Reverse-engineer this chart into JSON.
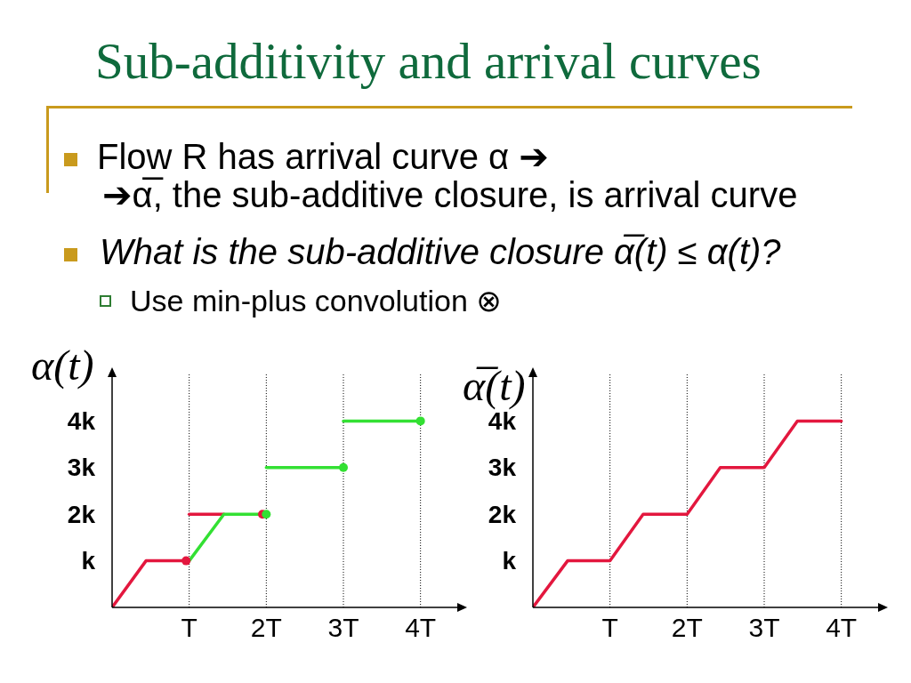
{
  "chart_data": [
    {
      "type": "line",
      "title": "Sub-additivity and arrival curves",
      "annotations": [
        "Flow R has arrival curve α ➔",
        "➔α̅, the sub-additive closure, is arrival curve",
        "What is the sub-additive closure α̅(t) ≤ α(t)?",
        "Use min-plus convolution ⊗"
      ],
      "ylabel": "α(t)",
      "xlim": [
        0,
        4.5
      ],
      "ylim": [
        0,
        5
      ],
      "xticks": [
        {
          "value": 1,
          "label": "T"
        },
        {
          "value": 2,
          "label": "2T"
        },
        {
          "value": 3,
          "label": "3T"
        },
        {
          "value": 4,
          "label": "4T"
        }
      ],
      "yticks": [
        {
          "value": 1,
          "label": "k"
        },
        {
          "value": 2,
          "label": "2k"
        },
        {
          "value": 3,
          "label": "3k"
        },
        {
          "value": 4,
          "label": "4k"
        }
      ],
      "grid": "x",
      "series": [
        {
          "color": "#e3173e",
          "x": [
            0,
            0.44,
            1
          ],
          "values": [
            0,
            1,
            1
          ]
        },
        {
          "color": "#e3173e",
          "x": [
            1,
            1.45
          ],
          "values": [
            2,
            2
          ]
        },
        {
          "color": "#33e033",
          "x": [
            1,
            1.45,
            2
          ],
          "values": [
            1,
            2,
            2
          ]
        },
        {
          "color": "#33e033",
          "x": [
            2,
            3
          ],
          "values": [
            3,
            3
          ]
        },
        {
          "color": "#33e033",
          "x": [
            3,
            4
          ],
          "values": [
            4,
            4
          ]
        },
        {
          "type": "scatter",
          "marker": "circle",
          "color": "#e3173e",
          "x": [
            0.96,
            1.95
          ],
          "values": [
            1,
            2
          ]
        },
        {
          "type": "scatter",
          "marker": "circle",
          "color": "#33e033",
          "x": [
            2,
            3,
            4
          ],
          "values": [
            2,
            3,
            4
          ]
        }
      ]
    },
    {
      "type": "line",
      "ylabel": "α̅(t)",
      "xlim": [
        0,
        4.5
      ],
      "ylim": [
        0,
        5
      ],
      "xticks": [
        {
          "value": 1,
          "label": "T"
        },
        {
          "value": 2,
          "label": "2T"
        },
        {
          "value": 3,
          "label": "3T"
        },
        {
          "value": 4,
          "label": "4T"
        }
      ],
      "yticks": [
        {
          "value": 1,
          "label": "k"
        },
        {
          "value": 2,
          "label": "2k"
        },
        {
          "value": 3,
          "label": "3k"
        },
        {
          "value": 4,
          "label": "4k"
        }
      ],
      "grid": "x",
      "series": [
        {
          "color": "#e3173e",
          "x": [
            0,
            0.45,
            1,
            1.43,
            2,
            2.43,
            3,
            3.43,
            4
          ],
          "values": [
            0,
            1,
            1,
            2,
            2,
            3,
            3,
            4,
            4
          ]
        }
      ]
    }
  ]
}
